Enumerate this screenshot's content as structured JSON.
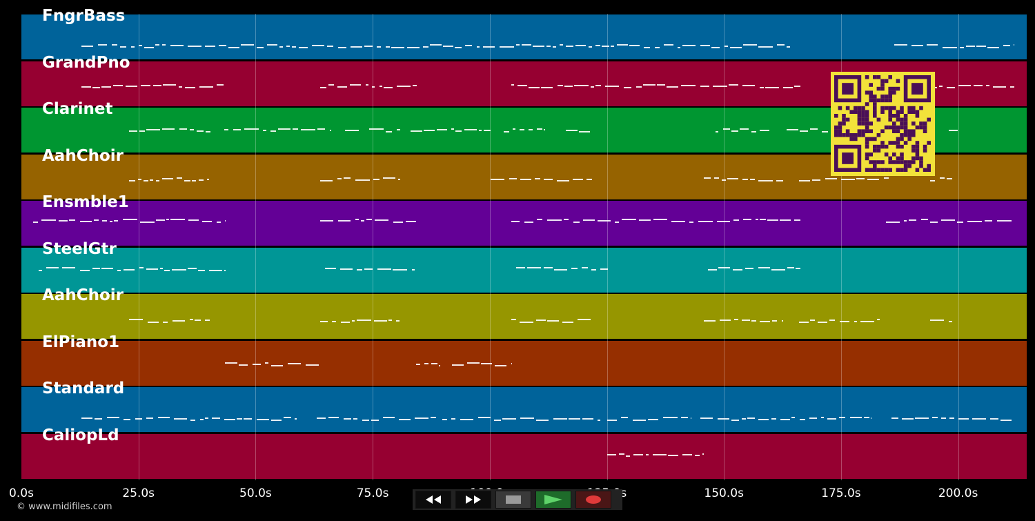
{
  "tracks": [
    {
      "name": "FngrBass",
      "color": "#00639a"
    },
    {
      "name": "GrandPno",
      "color": "#960031"
    },
    {
      "name": "Clarinet",
      "color": "#009631"
    },
    {
      "name": "AahChoir",
      "color": "#966300"
    },
    {
      "name": "Ensmble1",
      "color": "#630096"
    },
    {
      "name": "SteelGtr",
      "color": "#009696"
    },
    {
      "name": "AahChoir",
      "color": "#969600"
    },
    {
      "name": "ElPiano1",
      "color": "#962f00"
    },
    {
      "name": "Standard",
      "color": "#00639a"
    },
    {
      "name": "CaliopLd",
      "color": "#960031"
    }
  ],
  "timeline": {
    "ticks": [
      "0.0s",
      "25.0s",
      "50.0s",
      "75.0s",
      "100.0s",
      "125.0s",
      "150.0s",
      "175.0s",
      "200.0s"
    ]
  },
  "transport": {
    "buttons": [
      {
        "name": "rewind-button",
        "icon": "rewind-icon"
      },
      {
        "name": "fast-forward-button",
        "icon": "fast-forward-icon"
      },
      {
        "name": "stop-button",
        "icon": "stop-icon"
      },
      {
        "name": "play-button",
        "icon": "play-icon"
      },
      {
        "name": "record-button",
        "icon": "record-icon"
      }
    ]
  },
  "footer": {
    "copyright": "© www.midifiles.com"
  },
  "overlay": {
    "qr_icon": "qr-code-icon",
    "qr_colors": {
      "light": "#f2e23a",
      "dark": "#4a0f57"
    }
  }
}
